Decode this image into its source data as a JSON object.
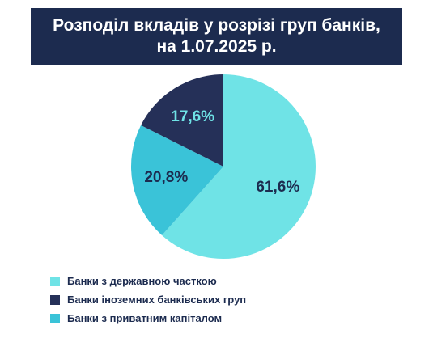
{
  "title": {
    "line1": "Розподіл вкладів у розрізі груп банків,",
    "line2": "на 1.07.2025 р."
  },
  "colors": {
    "banner": "#1c2b4f",
    "label_dark": "#1c2b4f",
    "label_light": "#6fe3e6"
  },
  "chart_data": {
    "type": "pie",
    "title": "Розподіл вкладів у розрізі груп банків, на 1.07.2025 р.",
    "unit": "%",
    "start_angle_deg": 0,
    "direction": "clockwise",
    "legend_position": "bottom-left",
    "series": [
      {
        "name": "Банки з державною часткою",
        "value": 61.6,
        "label": "61,6%",
        "color": "#6fe3e6",
        "label_color": "#1c2b4f"
      },
      {
        "name": "Банки з приватним капіталом",
        "value": 20.8,
        "label": "20,8%",
        "color": "#3ac3d8",
        "label_color": "#1c2b4f"
      },
      {
        "name": "Банки іноземних банківських груп",
        "value": 17.6,
        "label": "17,6%",
        "color": "#253058",
        "label_color": "#6fe3e6"
      }
    ]
  },
  "legend": [
    {
      "label": "Банки з державною часткою",
      "color": "#6fe3e6"
    },
    {
      "label": "Банки іноземних банківських груп",
      "color": "#253058"
    },
    {
      "label": "Банки з приватним капіталом",
      "color": "#3ac3d8"
    }
  ]
}
